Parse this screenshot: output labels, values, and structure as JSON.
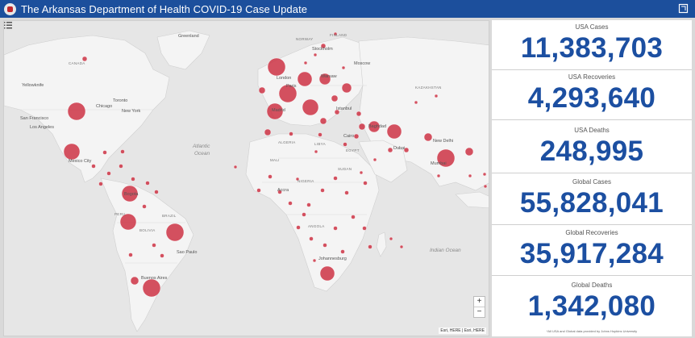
{
  "header": {
    "title": "The Arkansas Department of Health COVID-19 Case Update",
    "logo_icon": "arkansas-health-seal-icon",
    "expand_icon": "fullscreen-icon"
  },
  "map": {
    "legend_icon": "layer-list-icon",
    "zoom_in_label": "+",
    "zoom_out_label": "−",
    "attribution": "Esri, HERE | Esri, HERE",
    "labels": {
      "canada": "CANADA",
      "greenland": "Greenland",
      "yellowknife": "Yellowknife",
      "chicago": "Chicago",
      "toronto": "Toronto",
      "new_york": "New York",
      "san_francisco": "San Francisco",
      "los_angeles": "Los Angeles",
      "mexico_city": "Mexico City",
      "bogota": "Bogota",
      "sao_paulo": "Sao Paulo",
      "buenos_aires": "Buenos Aires",
      "atlantic": "Atlantic",
      "ocean": "Ocean",
      "norway": "NORWAY",
      "finland": "FINLAND",
      "stockholm": "Stockholm",
      "moscow": "Moscow",
      "london": "London",
      "paris": "Paris",
      "warsaw": "Warsaw",
      "madrid": "Madrid",
      "istanbul": "Istanbul",
      "kazakhstan": "KAZAKHSTAN",
      "baghdad": "Baghdad",
      "cairo": "Cairo",
      "dubai": "Dubai",
      "new_delhi": "New Delhi",
      "mumbai": "Mumbai",
      "algeria": "ALGERIA",
      "libya": "LIBYA",
      "egypt": "EGYPT",
      "mali": "MALI",
      "nigeria": "NIGERIA",
      "sudan": "SUDAN",
      "accra": "Accra",
      "angola": "ANGOLA",
      "johannesburg": "Johannesburg",
      "indian_ocean": "Indian Ocean",
      "brazil": "BRAZIL",
      "peru": "PERU",
      "bolivia": "BOLIVIA"
    },
    "marker_color": "#cc3344"
  },
  "stats": [
    {
      "label": "USA Cases",
      "value": "11,383,703"
    },
    {
      "label": "USA Recoveries",
      "value": "4,293,640"
    },
    {
      "label": "USA Deaths",
      "value": "248,995"
    },
    {
      "label": "Global Cases",
      "value": "55,828,041"
    },
    {
      "label": "Global Recoveries",
      "value": "35,917,284"
    },
    {
      "label": "Global Deaths",
      "value": "1,342,080"
    }
  ],
  "footnote": "*All USA and Global data provided by Johns Hopkins University"
}
